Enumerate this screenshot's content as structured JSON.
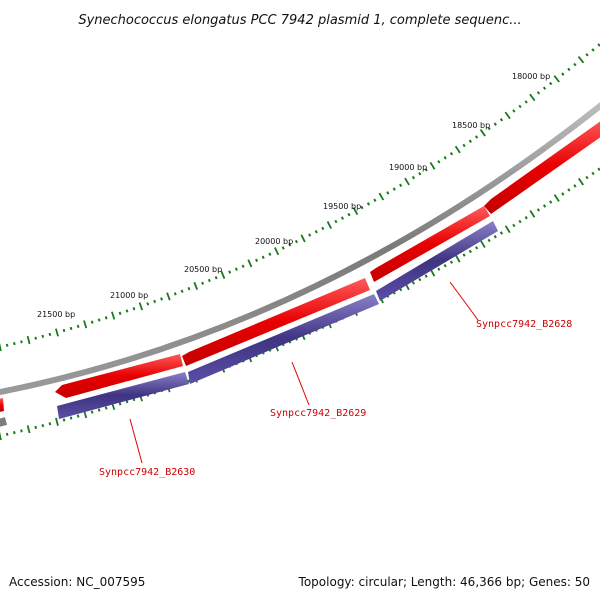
{
  "title": "Synechococcus elongatus PCC 7942 plasmid 1, complete sequenc...",
  "footer": {
    "accession": "Accession: NC_007595",
    "summary": "Topology: circular; Length: 46,366 bp; Genes: 50"
  },
  "ticks": [
    {
      "label": "18000 bp"
    },
    {
      "label": "18500 bp"
    },
    {
      "label": "19000 bp"
    },
    {
      "label": "19500 bp"
    },
    {
      "label": "20000 bp"
    },
    {
      "label": "20500 bp"
    },
    {
      "label": "21000 bp"
    },
    {
      "label": "21500 bp"
    }
  ],
  "genes": [
    {
      "label": "Synpcc7942_B2628"
    },
    {
      "label": "Synpcc7942_B2629"
    },
    {
      "label": "Synpcc7942_B2630"
    }
  ],
  "colors": {
    "backbone": "#8a8a8a",
    "forward_feature": "#ee1111",
    "cds_feature": "#4a3f8c",
    "tick": "#1a7a1a",
    "gene_label": "#cc0000"
  }
}
